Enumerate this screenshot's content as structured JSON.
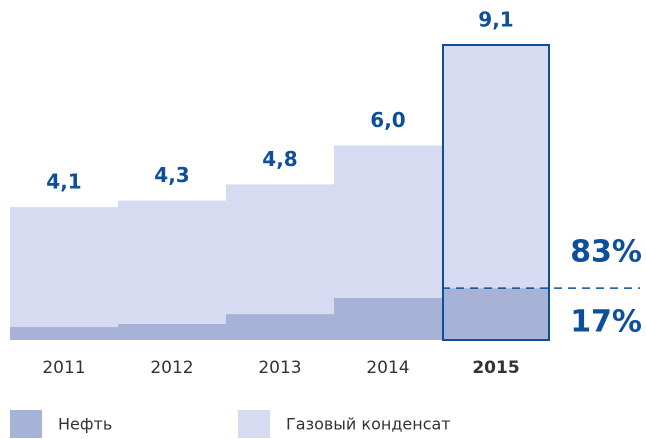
{
  "chart_data": {
    "type": "stacked_bar",
    "categories": [
      "2011",
      "2012",
      "2013",
      "2014",
      "2015"
    ],
    "series": [
      {
        "name": "Нефть",
        "color": "#a6b3d7",
        "values": [
          0.4,
          0.5,
          0.8,
          1.3,
          1.6
        ]
      },
      {
        "name": "Газовый конденсат",
        "color": "#d6dbf1",
        "values": [
          3.7,
          3.8,
          4.0,
          4.7,
          7.5
        ]
      }
    ],
    "total_labels": [
      "4,1",
      "4,3",
      "4,8",
      "6,0",
      "9,1"
    ],
    "annotations": [
      "83%",
      "17%"
    ],
    "highlight_color": "#0d4f9a"
  }
}
